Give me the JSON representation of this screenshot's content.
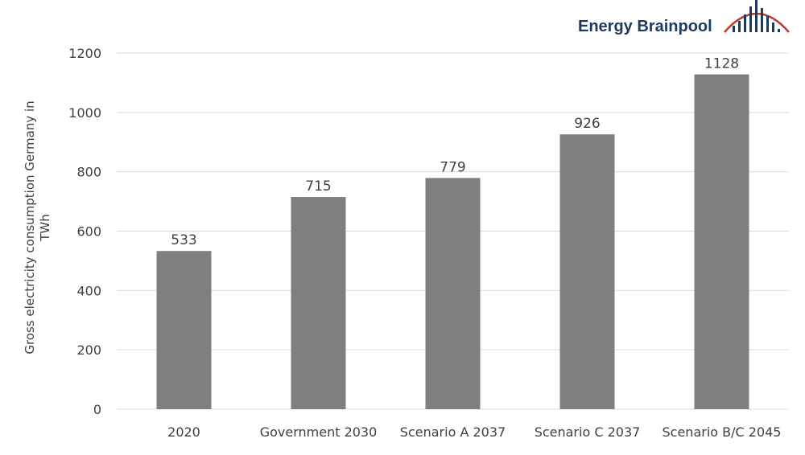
{
  "logo": {
    "text": "Energy Brainpool",
    "text_color": "#1f3a5f",
    "accent_color": "#c0392b"
  },
  "chart_data": {
    "type": "bar",
    "categories": [
      "2020",
      "Government 2030",
      "Scenario A 2037",
      "Scenario C 2037",
      "Scenario B/C 2045"
    ],
    "values": [
      533,
      715,
      779,
      926,
      1128
    ],
    "data_labels": [
      "533",
      "715",
      "779",
      "926",
      "1128"
    ],
    "ylabel": "Gross electricity consumption Germany in TWh",
    "ylabel_lines": [
      "Gross electricity consumption Germany in",
      "TWh"
    ],
    "xlabel": "",
    "ylim": [
      0,
      1200
    ],
    "yticks": [
      0,
      200,
      400,
      600,
      800,
      1000,
      1200
    ],
    "grid": true,
    "bar_color": "#7f7f7f",
    "grid_color": "#d9d9d9",
    "text_color": "#404040"
  }
}
